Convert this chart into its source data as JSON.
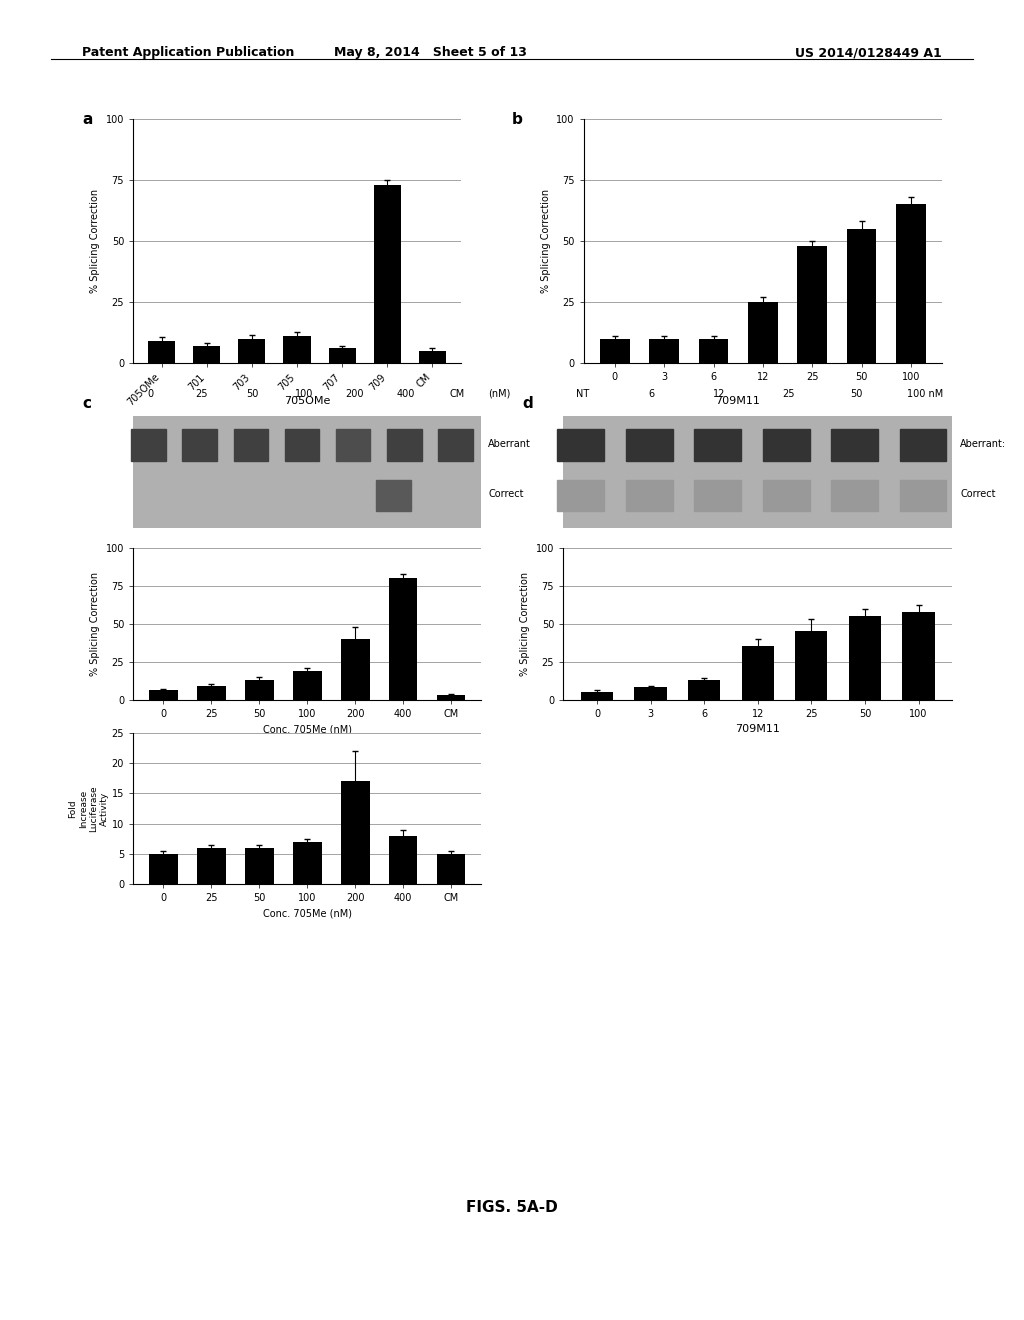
{
  "panel_a": {
    "categories": [
      "705OMe",
      "701",
      "703",
      "705",
      "707",
      "709",
      "CM"
    ],
    "values": [
      9,
      7,
      10,
      11,
      6,
      73,
      5
    ],
    "errors": [
      1.5,
      1,
      1.5,
      1.5,
      1,
      2,
      1
    ],
    "ylabel": "% Splicing Correction",
    "ylim": [
      0,
      100
    ],
    "yticks": [
      0,
      25,
      50,
      75,
      100
    ]
  },
  "panel_b": {
    "categories": [
      "0",
      "3",
      "6",
      "12",
      "25",
      "50",
      "100"
    ],
    "values": [
      10,
      10,
      10,
      25,
      48,
      55,
      65
    ],
    "errors": [
      1,
      1,
      1,
      2,
      2,
      3,
      3
    ],
    "ylabel": "% Splicing Correction",
    "ylim": [
      0,
      100
    ],
    "yticks": [
      0,
      25,
      50,
      75,
      100
    ]
  },
  "panel_c_gel_title": "705OMe",
  "panel_c_gel_lanes": [
    "0",
    "25",
    "50",
    "100",
    "200",
    "400",
    "CM",
    "(nM)"
  ],
  "panel_c_bar": {
    "categories": [
      "0",
      "25",
      "50",
      "100",
      "200",
      "400",
      "CM"
    ],
    "values": [
      6,
      9,
      13,
      19,
      40,
      80,
      3
    ],
    "errors": [
      1,
      1.5,
      2,
      2,
      8,
      3,
      0.5
    ],
    "ylabel": "% Splicing Correction",
    "xlabel": "Conc. 705Me (nM)",
    "ylim": [
      0,
      100
    ],
    "yticks": [
      0,
      25,
      50,
      75,
      100
    ]
  },
  "panel_c_luc": {
    "categories": [
      "0",
      "25",
      "50",
      "100",
      "200",
      "400",
      "CM"
    ],
    "values": [
      5,
      6,
      6,
      7,
      17,
      8,
      5
    ],
    "errors": [
      0.5,
      0.5,
      0.5,
      0.5,
      5,
      1,
      0.5
    ],
    "ylabel": "Fold\nIncrease\nLuciferase\nActivity",
    "xlabel": "Conc. 705Me (nM)",
    "ylim": [
      0,
      25
    ],
    "yticks": [
      0,
      5,
      10,
      15,
      20,
      25
    ]
  },
  "panel_d_gel_title": "709M11",
  "panel_d_gel_lanes": [
    "NT",
    "6",
    "12",
    "25",
    "50",
    "100 nM"
  ],
  "panel_d_bar": {
    "categories": [
      "0",
      "3",
      "6",
      "12",
      "25",
      "50",
      "100"
    ],
    "values": [
      5,
      8,
      13,
      35,
      45,
      55,
      58
    ],
    "errors": [
      1,
      1,
      1.5,
      5,
      8,
      5,
      4
    ],
    "ylabel": "% Splicing Correction",
    "xlabel": "709M11",
    "ylim": [
      0,
      100
    ],
    "yticks": [
      0,
      25,
      50,
      75,
      100
    ]
  },
  "header_left": "Patent Application Publication",
  "header_center": "May 8, 2014   Sheet 5 of 13",
  "header_right": "US 2014/0128449 A1",
  "caption": "FIGS. 5A-D",
  "bar_color": "#000000",
  "background_color": "#ffffff"
}
